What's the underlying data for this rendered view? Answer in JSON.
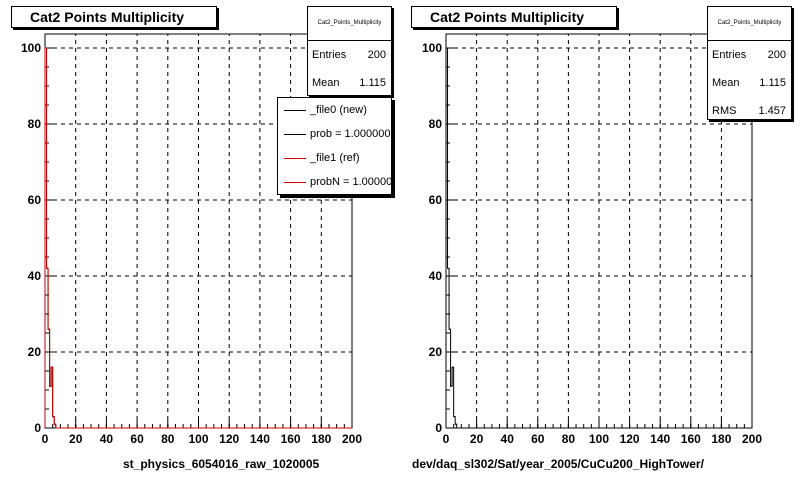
{
  "colors": {
    "new": "#000000",
    "ref": "#cc0000",
    "grid": "#000000"
  },
  "chart_data": [
    {
      "type": "histogram",
      "title": "Cat2 Points Multiplicity",
      "xlabel": "st_physics_6054016_raw_1020005",
      "xlim": [
        0,
        200
      ],
      "ylim": [
        0,
        100
      ],
      "xticks": [
        0,
        20,
        40,
        60,
        80,
        100,
        120,
        140,
        160,
        180,
        200
      ],
      "yticks": [
        0,
        20,
        40,
        60,
        80,
        100
      ],
      "grid": true,
      "bin_width": 1,
      "series": [
        {
          "name": "_file0 (new)",
          "values": [
            100,
            42,
            26,
            11,
            16,
            3,
            1,
            0
          ]
        },
        {
          "name": "_file1 (ref)",
          "values": [
            100,
            42,
            26,
            11,
            16,
            3,
            1,
            0
          ]
        }
      ],
      "stats": {
        "name": "Cat2_Points_Multiplicity",
        "rows": [
          {
            "label": "Entries",
            "value": "200"
          },
          {
            "label": "Mean",
            "value": "1.115"
          }
        ]
      },
      "legend": {
        "placement": "top-right",
        "entries": [
          {
            "label": "_file0 (new)",
            "color": "#000000"
          },
          {
            "label": "prob = 1.000000",
            "color": "#000000"
          },
          {
            "label": "_file1 (ref)",
            "color": "#cc0000"
          },
          {
            "label": "probN = 1.000000",
            "color": "#cc0000"
          }
        ]
      }
    },
    {
      "type": "histogram",
      "title": "Cat2 Points Multiplicity",
      "xlabel": "dev/daq_sl302/Sat/year_2005/CuCu200_HighTower/",
      "xlim": [
        0,
        200
      ],
      "ylim": [
        0,
        100
      ],
      "xticks": [
        0,
        20,
        40,
        60,
        80,
        100,
        120,
        140,
        160,
        180,
        200
      ],
      "yticks": [
        0,
        20,
        40,
        60,
        80,
        100
      ],
      "grid": true,
      "bin_width": 1,
      "series": [
        {
          "name": "",
          "values": [
            100,
            42,
            26,
            11,
            16,
            3,
            1,
            0
          ]
        }
      ],
      "stats": {
        "name": "Cat2_Points_Multiplicity",
        "rows": [
          {
            "label": "Entries",
            "value": "200"
          },
          {
            "label": "Mean",
            "value": "1.115"
          },
          {
            "label": "RMS",
            "value": "1.457"
          }
        ]
      }
    }
  ]
}
